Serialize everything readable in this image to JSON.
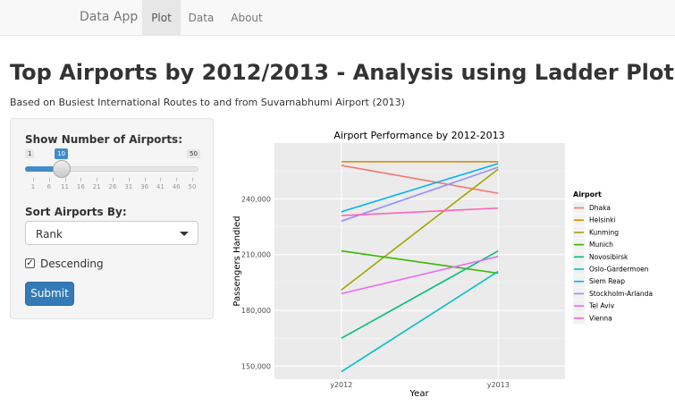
{
  "navbar": {
    "brand": "Data App",
    "tabs": [
      {
        "label": "Plot",
        "active": true
      },
      {
        "label": "Data",
        "active": false
      },
      {
        "label": "About",
        "active": false
      }
    ]
  },
  "header": {
    "title": "Top Airports by 2012/2013 - Analysis using Ladder Plot",
    "subtitle": "Based on Busiest International Routes to and from Suvarnabhumi Airport (2013)"
  },
  "sidebar": {
    "slider": {
      "label": "Show Number of Airports:",
      "min": "1",
      "max": "50",
      "value": "10",
      "ticks": [
        "1",
        "6",
        "11",
        "16",
        "21",
        "26",
        "31",
        "36",
        "41",
        "46",
        "50"
      ]
    },
    "sort": {
      "label": "Sort Airports By:",
      "selected": "Rank"
    },
    "descending": {
      "label": "Descending",
      "checked": true
    },
    "submit_label": "Submit"
  },
  "colors": {
    "accent": "#337ab7",
    "panel_bg": "#ebebeb"
  },
  "chart_data": {
    "type": "line",
    "title": "Airport Performance by 2012-2013",
    "xlabel": "Year",
    "ylabel": "Passengers Handled",
    "categories": [
      "y2012",
      "y2013"
    ],
    "y_ticks": [
      "150,000",
      "180,000",
      "210,000",
      "240,000"
    ],
    "ylim": [
      143000,
      270000
    ],
    "legend_title": "Airport",
    "legend_position": "right",
    "grid": true,
    "series": [
      {
        "name": "Dhaka",
        "color": "#f8766d",
        "values": [
          258000,
          243000
        ]
      },
      {
        "name": "Helsinki",
        "color": "#d89000",
        "values": [
          260000,
          260000
        ]
      },
      {
        "name": "Kunming",
        "color": "#a3a500",
        "values": [
          191000,
          256000
        ]
      },
      {
        "name": "Munich",
        "color": "#39b600",
        "values": [
          212000,
          200000
        ]
      },
      {
        "name": "Novosibirsk",
        "color": "#00bf7d",
        "values": [
          165000,
          212000
        ]
      },
      {
        "name": "Oslo-Gardermoen",
        "color": "#00bfc4",
        "values": [
          147000,
          201000
        ]
      },
      {
        "name": "Siem Reap",
        "color": "#00b0f6",
        "values": [
          233000,
          259000
        ]
      },
      {
        "name": "Stockholm-Arlanda",
        "color": "#9590ff",
        "values": [
          228000,
          257000
        ]
      },
      {
        "name": "Tel Aviv",
        "color": "#e76bf3",
        "values": [
          189000,
          209000
        ]
      },
      {
        "name": "Vienna",
        "color": "#ff62bc",
        "values": [
          231000,
          235000
        ]
      }
    ]
  }
}
